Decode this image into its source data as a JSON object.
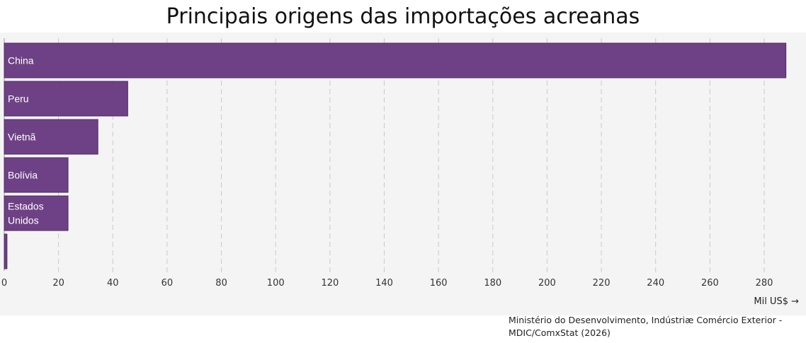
{
  "chart_data": {
    "type": "bar",
    "orientation": "horizontal",
    "title": "Principais origens das importações acreanas",
    "categories": [
      "China",
      "Peru",
      "Vietnã",
      "Bolívia",
      "Estados Unidos",
      ""
    ],
    "values": [
      288,
      45.5,
      34.5,
      23.5,
      23.5,
      1
    ],
    "xlim": [
      0,
      288
    ],
    "xticks": [
      0,
      20,
      40,
      60,
      80,
      100,
      120,
      140,
      160,
      180,
      200,
      220,
      240,
      260,
      280
    ],
    "xunit": "Mil US$ →",
    "grid": "vertical-dashed",
    "bar_color": "#6e4186"
  },
  "source": "Ministério do Desenvolvimento, Indústriæ Comércio Exterior - MDIC/ComxStat (2026)"
}
